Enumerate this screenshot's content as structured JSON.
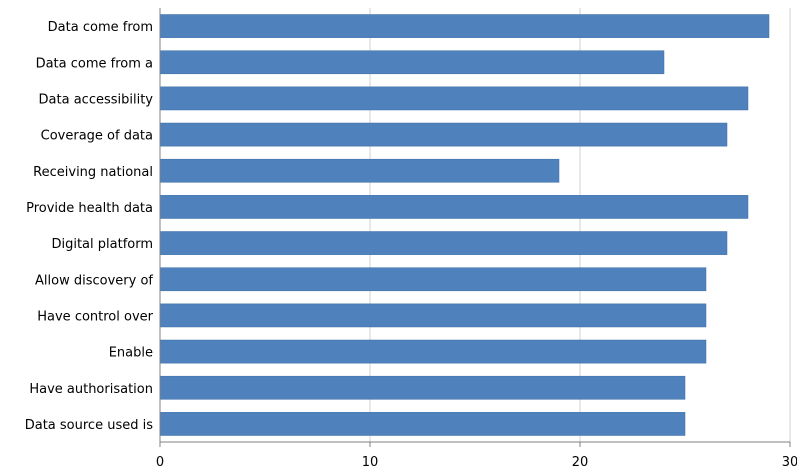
{
  "chart_data": {
    "type": "bar",
    "orientation": "horizontal",
    "categories": [
      "Data come from",
      "Data come from a",
      "Data accessibility",
      "Coverage of data",
      "Receiving national",
      "Provide health data",
      "Digital platform",
      "Allow discovery of",
      "Have control over",
      "Enable",
      "Have authorisation",
      "Data source used is"
    ],
    "values": [
      29,
      24,
      28,
      27,
      19,
      28,
      27,
      26,
      26,
      26,
      25,
      25
    ],
    "xlim": [
      0,
      30
    ],
    "xticks": [
      "0",
      "10",
      "20",
      "30"
    ],
    "grid": true,
    "legend": "none",
    "colors": {
      "bar": "#4F81BD",
      "bar_edge": "#3A6EA5",
      "grid": "#d0d0d0",
      "axis": "#808080"
    }
  }
}
